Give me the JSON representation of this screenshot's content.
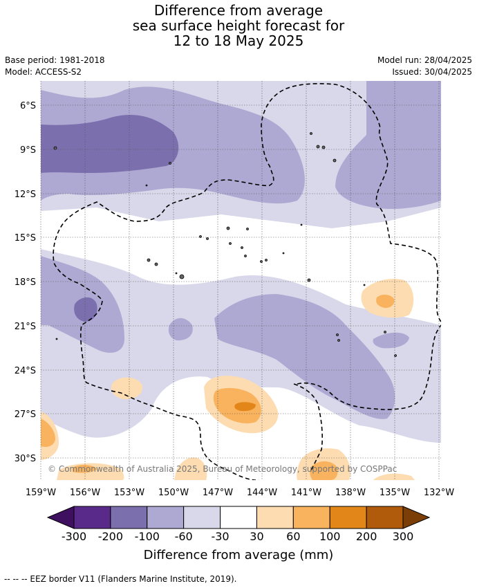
{
  "title": {
    "line1": "Difference from average",
    "line2": "sea surface height forecast for",
    "line3": "12 to 18 May 2025"
  },
  "meta": {
    "base_period": "Base period: 1981-2018",
    "model": "Model: ACCESS-S2",
    "model_run": "Model run: 28/04/2025",
    "issued": "Issued: 30/04/2025"
  },
  "axes": {
    "lat_labels": [
      "6°S",
      "9°S",
      "12°S",
      "15°S",
      "18°S",
      "21°S",
      "24°S",
      "27°S",
      "30°S"
    ],
    "lon_labels": [
      "159°W",
      "156°W",
      "153°W",
      "150°W",
      "147°W",
      "144°W",
      "141°W",
      "138°W",
      "135°W",
      "132°W"
    ]
  },
  "copyright": "© Commonwealth of Australia 2025, Bureau of Meteorology, supported by COSPPac",
  "colorbar": {
    "ticks": [
      "-300",
      "-200",
      "-100",
      "-60",
      "-30",
      "30",
      "60",
      "100",
      "200",
      "300"
    ],
    "colors": [
      "#3f1060",
      "#5a2a8a",
      "#7c6fae",
      "#aea9d2",
      "#d8d8ea",
      "#ffffff",
      "#fddcb1",
      "#f9b35f",
      "#e28619",
      "#b05a0c",
      "#7a3e06"
    ],
    "label": "Difference from average (mm)"
  },
  "footnote": "--  --  -- EEZ border V11 (Flanders Marine Institute, 2019)."
}
